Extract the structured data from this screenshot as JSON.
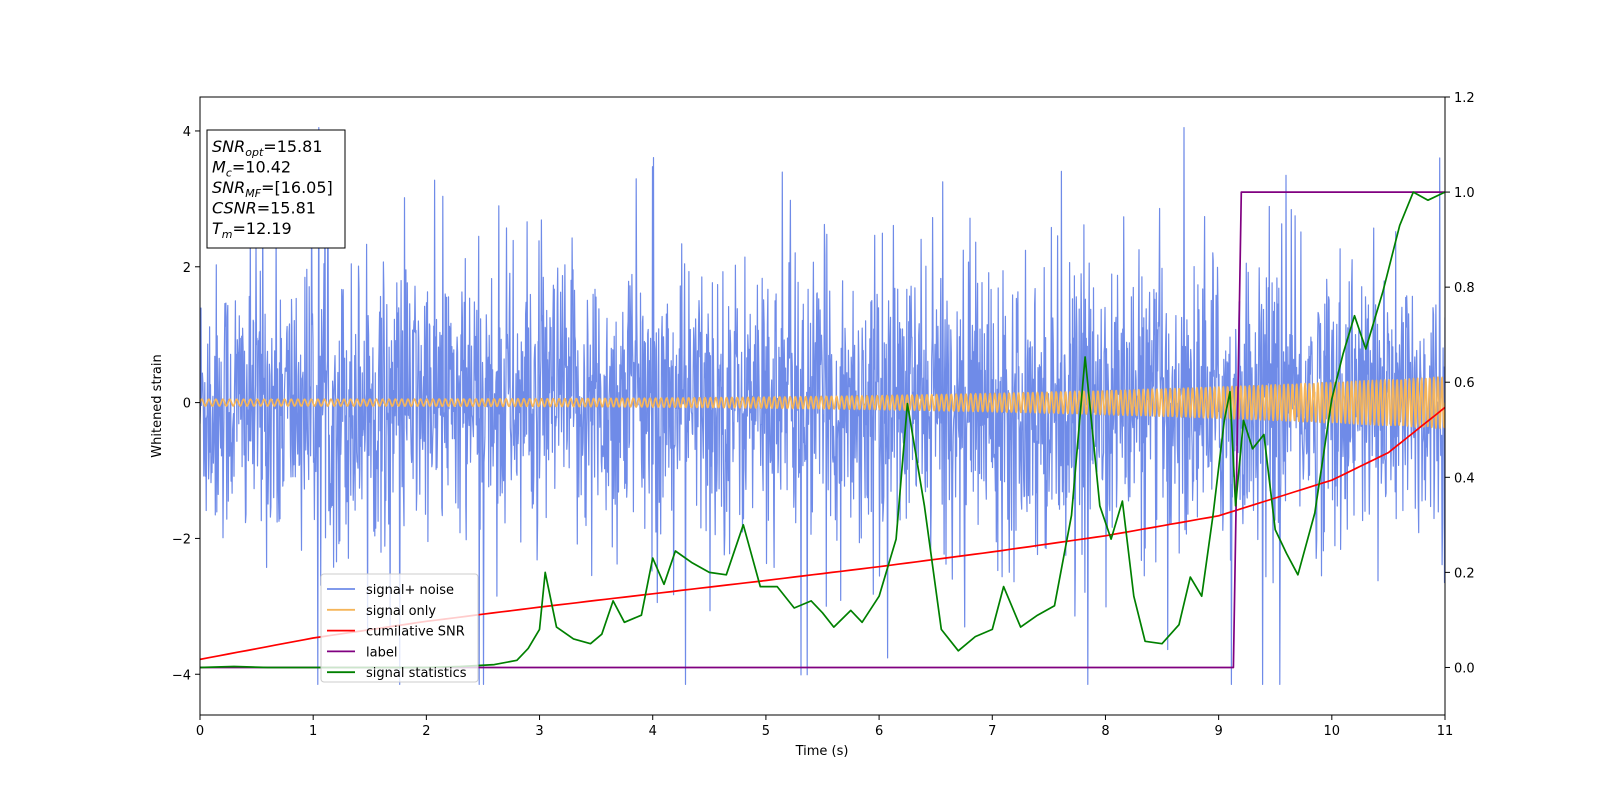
{
  "chart_data": {
    "type": "line",
    "xlabel": "Time (s)",
    "ylabel": "Whitened strain",
    "xlim": [
      0,
      11
    ],
    "ylim_left": [
      -4.6,
      4.5
    ],
    "ylim_right": [
      -0.1,
      1.2
    ],
    "x_ticks": [
      "0",
      "1",
      "2",
      "3",
      "4",
      "5",
      "6",
      "7",
      "8",
      "9",
      "10",
      "11"
    ],
    "y_ticks_left": [
      "−4",
      "−2",
      "0",
      "2",
      "4"
    ],
    "y_ticks_right": [
      "0.0",
      "0.2",
      "0.4",
      "0.6",
      "0.8",
      "1.0",
      "1.2"
    ],
    "info_box": [
      {
        "base": "SNR",
        "sub": "opt",
        "value": "=15.81"
      },
      {
        "base": "M",
        "sub": "c",
        "value": "=10.42"
      },
      {
        "base": "SNR",
        "sub": "MF",
        "value": "=[16.05]"
      },
      {
        "base": "CSNR",
        "sub": "",
        "value": "=15.81"
      },
      {
        "base": "T",
        "sub": "m",
        "value": "=12.19"
      }
    ],
    "series": [
      {
        "name": "signal+ noise",
        "color": "#6f8be8",
        "axis": "left",
        "kind": "noise",
        "typical_std": 1.0,
        "range": [
          -4.15,
          4.05
        ]
      },
      {
        "name": "signal only",
        "color": "#f5b55a",
        "axis": "left",
        "kind": "chirp",
        "amplitude_start": 0.05,
        "amplitude_end": 0.38
      },
      {
        "name": "cumilative SNR",
        "color": "#ff0000",
        "axis": "right",
        "x": [
          0,
          1,
          2,
          3,
          4,
          5,
          6,
          7,
          8,
          9,
          10,
          10.5,
          11
        ],
        "y": [
          0.017,
          0.062,
          0.097,
          0.127,
          0.155,
          0.183,
          0.212,
          0.243,
          0.277,
          0.319,
          0.394,
          0.452,
          0.547
        ]
      },
      {
        "name": "label",
        "color": "#800080",
        "axis": "right",
        "x": [
          0,
          9.13,
          9.2,
          11
        ],
        "y": [
          0.0,
          0.0,
          1.0,
          1.0
        ]
      },
      {
        "name": "signal statistics",
        "color": "#008000",
        "axis": "right",
        "x": [
          0,
          0.3,
          0.6,
          1.0,
          1.5,
          2.0,
          2.3,
          2.6,
          2.8,
          2.9,
          3.0,
          3.05,
          3.15,
          3.3,
          3.45,
          3.55,
          3.65,
          3.75,
          3.9,
          4.0,
          4.1,
          4.2,
          4.35,
          4.5,
          4.65,
          4.8,
          4.95,
          5.1,
          5.25,
          5.4,
          5.5,
          5.6,
          5.75,
          5.85,
          6.0,
          6.15,
          6.25,
          6.4,
          6.55,
          6.7,
          6.85,
          7.0,
          7.1,
          7.25,
          7.4,
          7.55,
          7.7,
          7.82,
          7.95,
          8.05,
          8.15,
          8.25,
          8.35,
          8.5,
          8.65,
          8.75,
          8.85,
          8.95,
          9.05,
          9.1,
          9.15,
          9.22,
          9.3,
          9.4,
          9.5,
          9.6,
          9.7,
          9.85,
          10.0,
          10.1,
          10.2,
          10.3,
          10.45,
          10.6,
          10.72,
          10.85,
          11.0
        ],
        "y": [
          0.0,
          0.002,
          0.0,
          0.0,
          0.0,
          0.0,
          0.002,
          0.006,
          0.015,
          0.04,
          0.08,
          0.2,
          0.085,
          0.06,
          0.05,
          0.07,
          0.14,
          0.095,
          0.11,
          0.23,
          0.175,
          0.245,
          0.22,
          0.2,
          0.195,
          0.3,
          0.17,
          0.17,
          0.125,
          0.14,
          0.115,
          0.085,
          0.12,
          0.095,
          0.15,
          0.27,
          0.555,
          0.34,
          0.08,
          0.035,
          0.065,
          0.08,
          0.17,
          0.085,
          0.11,
          0.13,
          0.32,
          0.653,
          0.34,
          0.27,
          0.35,
          0.15,
          0.055,
          0.05,
          0.09,
          0.19,
          0.15,
          0.32,
          0.52,
          0.58,
          0.34,
          0.52,
          0.46,
          0.49,
          0.29,
          0.24,
          0.195,
          0.325,
          0.565,
          0.66,
          0.74,
          0.67,
          0.79,
          0.93,
          1.0,
          0.983,
          1.0
        ]
      }
    ]
  }
}
